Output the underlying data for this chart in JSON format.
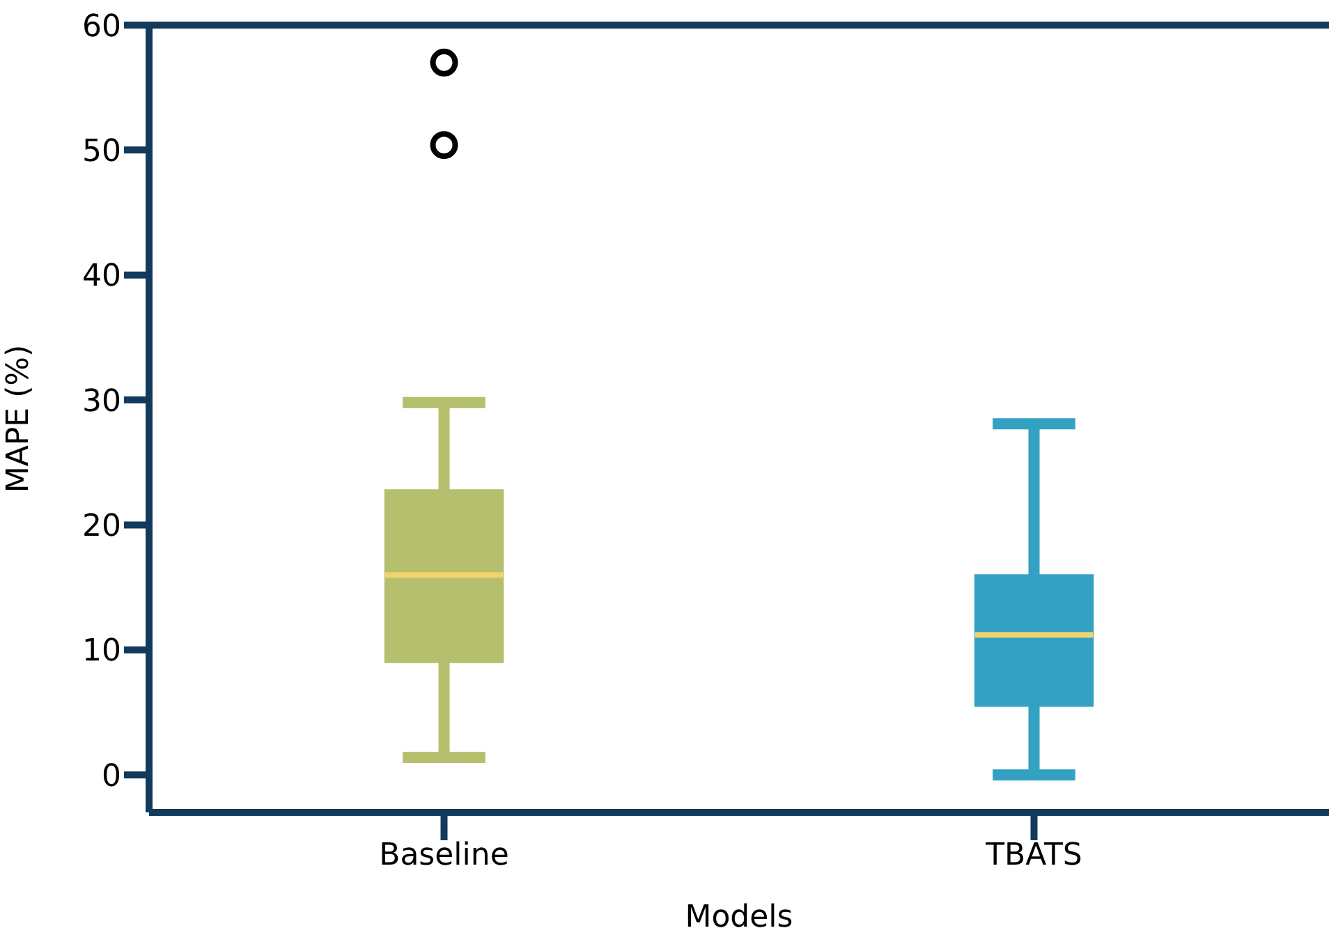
{
  "chart_data": {
    "type": "box",
    "xlabel": "Models",
    "ylabel": "MAPE (%)",
    "categories": [
      "Baseline",
      "TBATS"
    ],
    "colors": [
      "#b5bf6e",
      "#33a2c2"
    ],
    "boxes": [
      {
        "low": 1.4,
        "q1": 9.0,
        "median": 16.0,
        "q3": 22.8,
        "high": 29.8,
        "outliers": [
          50.4,
          57.0
        ]
      },
      {
        "low": 0,
        "q1": 5.5,
        "median": 11.2,
        "q3": 16.0,
        "high": 28.1
      }
    ],
    "ylim": [
      -3,
      60
    ],
    "yticks": [
      0,
      10,
      20,
      30,
      40,
      50,
      60
    ],
    "grid": false
  }
}
